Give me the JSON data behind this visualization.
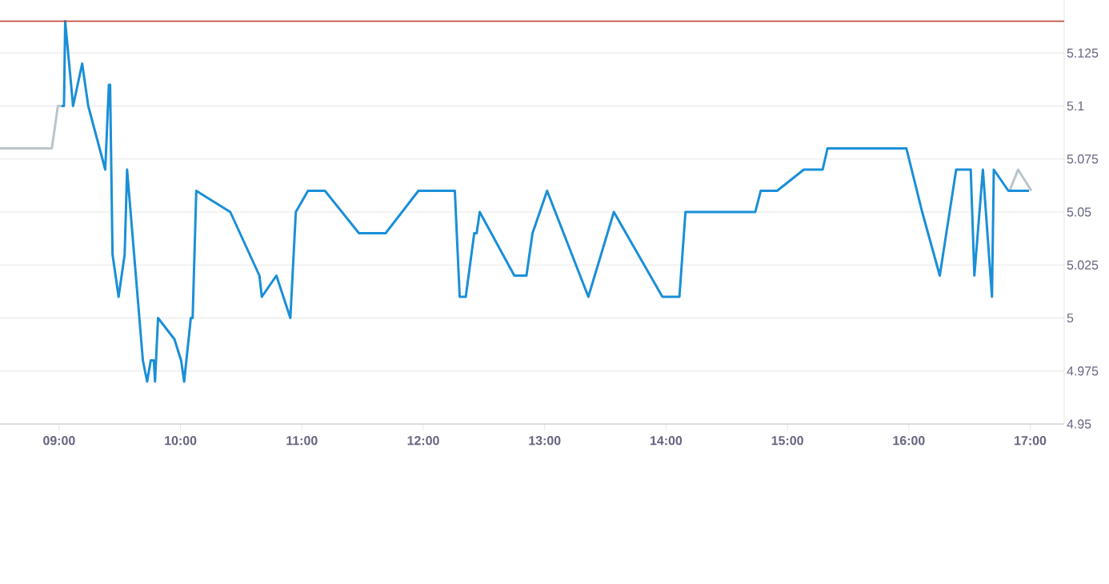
{
  "chart_data": {
    "type": "line",
    "xlim": [
      8.513,
      17.28
    ],
    "ylim": [
      4.95,
      5.15
    ],
    "xticks": [
      {
        "value": 9,
        "label": "09:00"
      },
      {
        "value": 10,
        "label": "10:00"
      },
      {
        "value": 11,
        "label": "11:00"
      },
      {
        "value": 12,
        "label": "12:00"
      },
      {
        "value": 13,
        "label": "13:00"
      },
      {
        "value": 14,
        "label": "14:00"
      },
      {
        "value": 15,
        "label": "15:00"
      },
      {
        "value": 16,
        "label": "16:00"
      },
      {
        "value": 17,
        "label": "17:00"
      }
    ],
    "yticks": [
      4.95,
      4.975,
      5,
      5.025,
      5.05,
      5.075,
      5.1,
      5.125
    ],
    "grid": "y",
    "ref_lines": [
      {
        "axis": "y",
        "value": 5.14,
        "color": "#c0392b"
      }
    ],
    "series": [
      {
        "color": "#b9c5cc",
        "x": [
          8.513,
          8.94,
          8.99,
          9.02,
          null,
          16.83,
          16.9,
          17.01
        ],
        "values": [
          5.08,
          5.08,
          5.1,
          5.1,
          null,
          5.06,
          5.07,
          5.06
        ]
      },
      {
        "color": "#1a8fd8",
        "x": [
          9.02,
          9.04,
          9.05,
          9.115,
          9.19,
          9.24,
          9.38,
          9.41,
          9.42,
          9.44,
          9.49,
          9.54,
          9.56,
          9.69,
          9.725,
          9.755,
          9.78,
          9.79,
          9.815,
          9.95,
          10.005,
          10.03,
          10.085,
          10.1,
          10.13,
          10.41,
          10.65,
          10.67,
          10.79,
          10.905,
          10.95,
          11.05,
          11.19,
          11.47,
          11.69,
          11.96,
          12.26,
          12.3,
          12.35,
          12.42,
          12.44,
          12.465,
          12.75,
          12.85,
          12.9,
          13.02,
          13.36,
          13.57,
          13.97,
          14.11,
          14.16,
          14.735,
          14.78,
          14.915,
          15.135,
          15.29,
          15.33,
          15.98,
          16.11,
          16.255,
          16.39,
          16.51,
          16.54,
          16.61,
          16.685,
          16.7,
          16.82,
          16.99
        ],
        "values": [
          5.1,
          5.1,
          5.14,
          5.1,
          5.12,
          5.1,
          5.07,
          5.11,
          5.11,
          5.03,
          5.01,
          5.03,
          5.07,
          4.98,
          4.97,
          4.98,
          4.98,
          4.97,
          5.0,
          4.99,
          4.98,
          4.97,
          5.0,
          5.0,
          5.06,
          5.05,
          5.02,
          5.01,
          5.02,
          5.0,
          5.05,
          5.06,
          5.06,
          5.04,
          5.04,
          5.06,
          5.06,
          5.01,
          5.01,
          5.04,
          5.04,
          5.05,
          5.02,
          5.02,
          5.04,
          5.06,
          5.01,
          5.05,
          5.01,
          5.01,
          5.05,
          5.05,
          5.06,
          5.06,
          5.07,
          5.07,
          5.08,
          5.08,
          5.05,
          5.02,
          5.07,
          5.07,
          5.02,
          5.07,
          5.01,
          5.07,
          5.06,
          5.06
        ]
      }
    ]
  }
}
